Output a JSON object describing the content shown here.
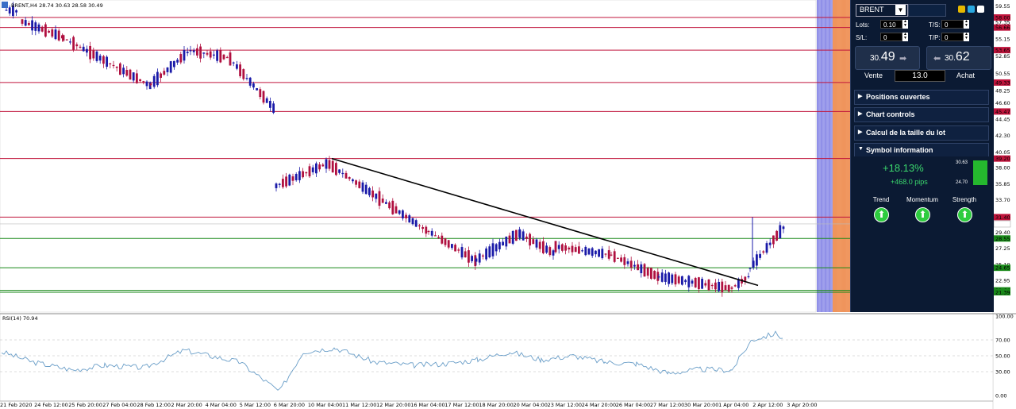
{
  "chart_header": {
    "title": "BRENT,H4  28.74 30.63 28.58 30.49"
  },
  "rsi_header": "RSI(14) 70.94",
  "price_axis_labels": [
    "59.55",
    "58.00",
    "57.35",
    "56.66",
    "55.15",
    "53.65",
    "52.85",
    "50.55",
    "49.33",
    "48.25",
    "46.60",
    "45.47",
    "44.45",
    "42.30",
    "40.05",
    "39.20",
    "38.00",
    "35.85",
    "33.70",
    "31.40",
    "29.40",
    "28.55",
    "27.25",
    "25.10",
    "24.65",
    "22.95",
    "21.64",
    "21.39"
  ],
  "boxed_labels": [
    {
      "text": "58.00",
      "color": "#c0143c"
    },
    {
      "text": "56.66",
      "color": "#c0143c"
    },
    {
      "text": "53.65",
      "color": "#c0143c"
    },
    {
      "text": "49.33",
      "color": "#c0143c"
    },
    {
      "text": "45.47",
      "color": "#c0143c"
    },
    {
      "text": "39.20",
      "color": "#c0143c"
    },
    {
      "text": "31.40",
      "color": "#c0143c"
    },
    {
      "text": "28.55",
      "color": "#1a8a1a"
    },
    {
      "text": "24.65",
      "color": "#1a8a1a"
    },
    {
      "text": "21.64",
      "color": "#1a8a1a"
    },
    {
      "text": "21.39",
      "color": "#1a8a1a"
    }
  ],
  "rsi_axis_labels": [
    "100.00",
    "70.00",
    "50.00",
    "30.00",
    "0.00"
  ],
  "time_labels": [
    "21 Feb 2020",
    "24 Feb 12:00",
    "25 Feb 20:00",
    "27 Feb 04:00",
    "28 Feb 12:00",
    "2 Mar 20:00",
    "4 Mar 04:00",
    "5 Mar 12:00",
    "6 Mar 20:00",
    "10 Mar 04:00",
    "11 Mar 12:00",
    "12 Mar 20:00",
    "16 Mar 04:00",
    "17 Mar 12:00",
    "18 Mar 20:00",
    "20 Mar 04:00",
    "23 Mar 12:00",
    "24 Mar 20:00",
    "26 Mar 04:00",
    "27 Mar 12:00",
    "30 Mar 20:00",
    "1 Apr 04:00",
    "2 Apr 12:00",
    "3 Apr 20:00"
  ],
  "panel": {
    "symbol": "BRENT",
    "lots_label": "Lots:",
    "lots_value": "0.10",
    "ts_label": "T/S:",
    "ts_value": "0",
    "sl_label": "S/L:",
    "sl_value": "0",
    "tp_label": "T/P:",
    "tp_value": "0",
    "sell_price_main": "30.",
    "sell_price_big": "49",
    "buy_price_main": "30.",
    "buy_price_big": "62",
    "sell_label": "Vente",
    "buy_label": "Achat",
    "spread": "13.0",
    "sections": [
      "Positions ouvertes",
      "Chart controls",
      "Calcul de la taille du lot",
      "Symbol information"
    ],
    "pct_change": "+18.13%",
    "pips_change": "+468.0 pips",
    "range_high": "30.63",
    "range_low": "24.70",
    "indicators": [
      "Trend",
      "Momentum",
      "Strength"
    ],
    "colors": {
      "background": "#0b1a33",
      "up": "#2ecc3f"
    }
  },
  "colors": {
    "bull_candle": "#1a1aa8",
    "bear_candle": "#b01040",
    "resistance_line": "#c0143c",
    "support_line": "#1a8a1a",
    "rsi_line": "#6a9ec8"
  }
}
